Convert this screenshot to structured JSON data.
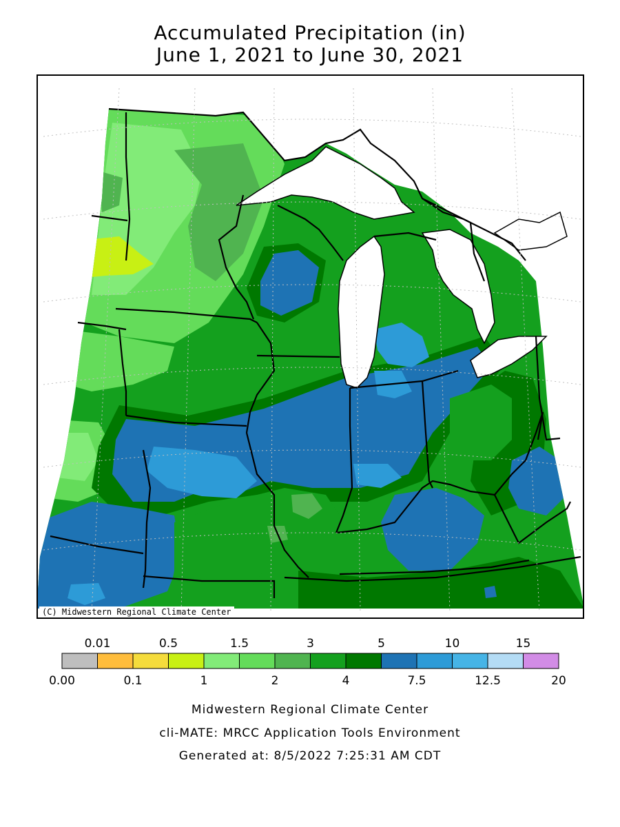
{
  "title": {
    "line1": "Accumulated Precipitation (in)",
    "line2": "June 1, 2021 to June 30, 2021"
  },
  "map": {
    "credit": "(C) Midwestern Regional Climate Center",
    "colors": {
      "water": "#ffffff",
      "border": "#000000",
      "grid": "#bfbfbf"
    }
  },
  "legend": {
    "bins": [
      {
        "color": "#bebebe"
      },
      {
        "color": "#ffbd3c"
      },
      {
        "color": "#f5dc3c"
      },
      {
        "color": "#c8f014"
      },
      {
        "color": "#82eb78"
      },
      {
        "color": "#64dc5a"
      },
      {
        "color": "#50b450"
      },
      {
        "color": "#14a01e"
      },
      {
        "color": "#007800"
      },
      {
        "color": "#1e73b4"
      },
      {
        "color": "#2d9bd7"
      },
      {
        "color": "#46b4e6"
      },
      {
        "color": "#b4dcf5"
      },
      {
        "color": "#d28ce6"
      }
    ],
    "top_labels": [
      "0.01",
      "0.5",
      "1.5",
      "3",
      "5",
      "10",
      "15"
    ],
    "bottom_labels": [
      "0.00",
      "0.1",
      "1",
      "2",
      "4",
      "7.5",
      "12.5",
      "20"
    ]
  },
  "footer": {
    "line1": "Midwestern Regional Climate Center",
    "line2": "cli-MATE: MRCC Application Tools Environment",
    "line3": "Generated at: 8/5/2022 7:25:31 AM CDT"
  }
}
